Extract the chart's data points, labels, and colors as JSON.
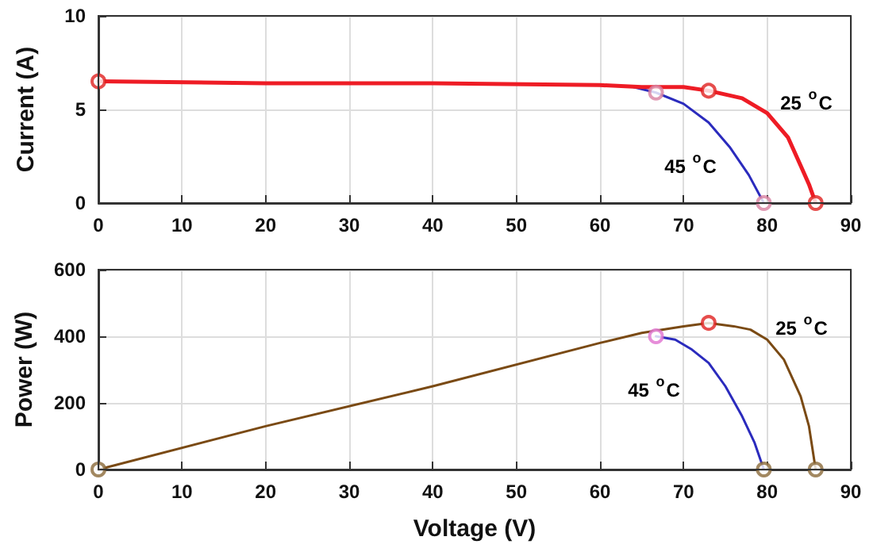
{
  "chart_data": [
    {
      "type": "line",
      "ylabel": "Current (A)",
      "xlim": [
        0,
        90
      ],
      "xticks": [
        0,
        10,
        20,
        30,
        40,
        50,
        60,
        70,
        80,
        90
      ],
      "ylim": [
        0,
        10
      ],
      "yticks": [
        0,
        5,
        10
      ],
      "grid": true,
      "marker": "none",
      "line_style": "solid",
      "annotations": [
        "25 $^{o}$C",
        "45 $^{o}$C"
      ],
      "series": [
        {
          "color": "#2b2bbd",
          "x": [
            64,
            66.7,
            70,
            73,
            75.5,
            77.8,
            79.6
          ],
          "values": [
            6.2,
            5.9,
            5.3,
            4.3,
            3.0,
            1.5,
            0
          ]
        },
        {
          "color": "#ee1c25",
          "x": [
            0,
            20,
            40,
            60,
            65,
            70,
            73,
            77,
            80,
            82.5,
            84,
            85,
            85.8
          ],
          "values": [
            6.5,
            6.4,
            6.4,
            6.3,
            6.2,
            6.2,
            6.0,
            5.6,
            4.8,
            3.5,
            2.0,
            1.0,
            0
          ]
        },
        {
          "type": "scatter",
          "marker": "circle",
          "color": "#e0201f",
          "x": [
            0,
            73,
            85.8
          ],
          "values": [
            6.5,
            6.0,
            0
          ]
        },
        {
          "type": "scatter",
          "marker": "circle",
          "color": "#d880a0",
          "x": [
            66.7,
            79.6
          ],
          "values": [
            5.9,
            0
          ]
        }
      ]
    },
    {
      "type": "line",
      "xlabel": "Voltage (V)",
      "ylabel": "Power (W)",
      "xlim": [
        0,
        90
      ],
      "xticks": [
        0,
        10,
        20,
        30,
        40,
        50,
        60,
        70,
        80,
        90
      ],
      "ylim": [
        0,
        600
      ],
      "yticks": [
        0,
        200,
        400,
        600
      ],
      "grid": true,
      "marker": "none",
      "line_style": "solid",
      "annotations": [
        "25 $^{o}$C",
        "45 $^{o}$C"
      ],
      "series": [
        {
          "color": "#2b2bbd",
          "x": [
            66.7,
            69,
            71,
            73,
            75,
            77,
            78.5,
            79.6
          ],
          "values": [
            400,
            390,
            360,
            320,
            250,
            160,
            80,
            0
          ]
        },
        {
          "color": "#7a4a14",
          "x": [
            0,
            20,
            40,
            60,
            65,
            70,
            73,
            76,
            78,
            80,
            82,
            84,
            85,
            85.8
          ],
          "values": [
            0,
            130,
            250,
            380,
            410,
            430,
            440,
            430,
            420,
            390,
            330,
            220,
            130,
            0
          ]
        },
        {
          "type": "scatter",
          "marker": "circle",
          "color": "#e0201f",
          "x": [
            73
          ],
          "values": [
            440
          ]
        },
        {
          "type": "scatter",
          "marker": "circle",
          "color": "#e070d0",
          "x": [
            66.7
          ],
          "values": [
            400
          ]
        },
        {
          "type": "scatter",
          "marker": "circle",
          "color": "#8b6a3a",
          "x": [
            0,
            79.6,
            85.8
          ],
          "values": [
            0,
            0,
            0
          ]
        }
      ]
    }
  ]
}
